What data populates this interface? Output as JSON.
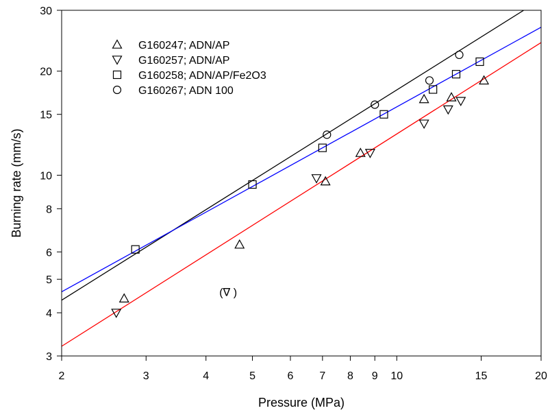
{
  "chart_data": {
    "type": "scatter",
    "title": "",
    "xlabel": "Pressure (MPa)",
    "ylabel": "Burning rate (mm/s)",
    "xscale": "log",
    "yscale": "log",
    "xlim": [
      2,
      20
    ],
    "ylim": [
      3,
      30
    ],
    "xticks": [
      2,
      3,
      4,
      5,
      6,
      7,
      8,
      9,
      10,
      15,
      20
    ],
    "yticks": [
      3,
      4,
      5,
      6,
      8,
      10,
      15,
      20,
      30
    ],
    "grid": false,
    "legend_position": "top-left",
    "series": [
      {
        "name": "G160247; ADN/AP",
        "marker": "triangle-up",
        "points": [
          [
            2.7,
            4.4
          ],
          [
            4.7,
            6.3
          ],
          [
            7.1,
            9.6
          ],
          [
            8.4,
            11.6
          ],
          [
            11.4,
            16.6
          ],
          [
            13.0,
            16.8
          ],
          [
            15.2,
            18.8
          ]
        ]
      },
      {
        "name": "G160257; ADN/AP",
        "marker": "triangle-down",
        "points": [
          [
            2.6,
            4.0
          ],
          [
            6.8,
            9.8
          ],
          [
            8.8,
            11.6
          ],
          [
            11.4,
            14.1
          ],
          [
            12.8,
            15.5
          ],
          [
            13.6,
            16.4
          ]
        ]
      },
      {
        "name": "G160258; ADN/AP/Fe2O3",
        "marker": "square",
        "points": [
          [
            2.85,
            6.1
          ],
          [
            5.0,
            9.4
          ],
          [
            7.0,
            12.0
          ],
          [
            9.4,
            15.0
          ],
          [
            11.9,
            17.7
          ],
          [
            13.3,
            19.6
          ],
          [
            14.9,
            21.3
          ]
        ]
      },
      {
        "name": "G160267; ADN 100",
        "marker": "circle",
        "points": [
          [
            7.15,
            13.1
          ],
          [
            9.0,
            16.0
          ],
          [
            11.7,
            18.8
          ],
          [
            13.5,
            22.3
          ]
        ]
      }
    ],
    "fit_lines": [
      {
        "color": "#000000",
        "points": [
          [
            2,
            4.35
          ],
          [
            18.4,
            30
          ]
        ]
      },
      {
        "color": "#0000ff",
        "points": [
          [
            2,
            4.6
          ],
          [
            20,
            26.8
          ]
        ]
      },
      {
        "color": "#ff0000",
        "points": [
          [
            2,
            3.2
          ],
          [
            20,
            24.2
          ]
        ]
      }
    ],
    "annotations": [
      {
        "text": "(∇ )",
        "x": 4.45,
        "y": 4.6
      }
    ]
  }
}
